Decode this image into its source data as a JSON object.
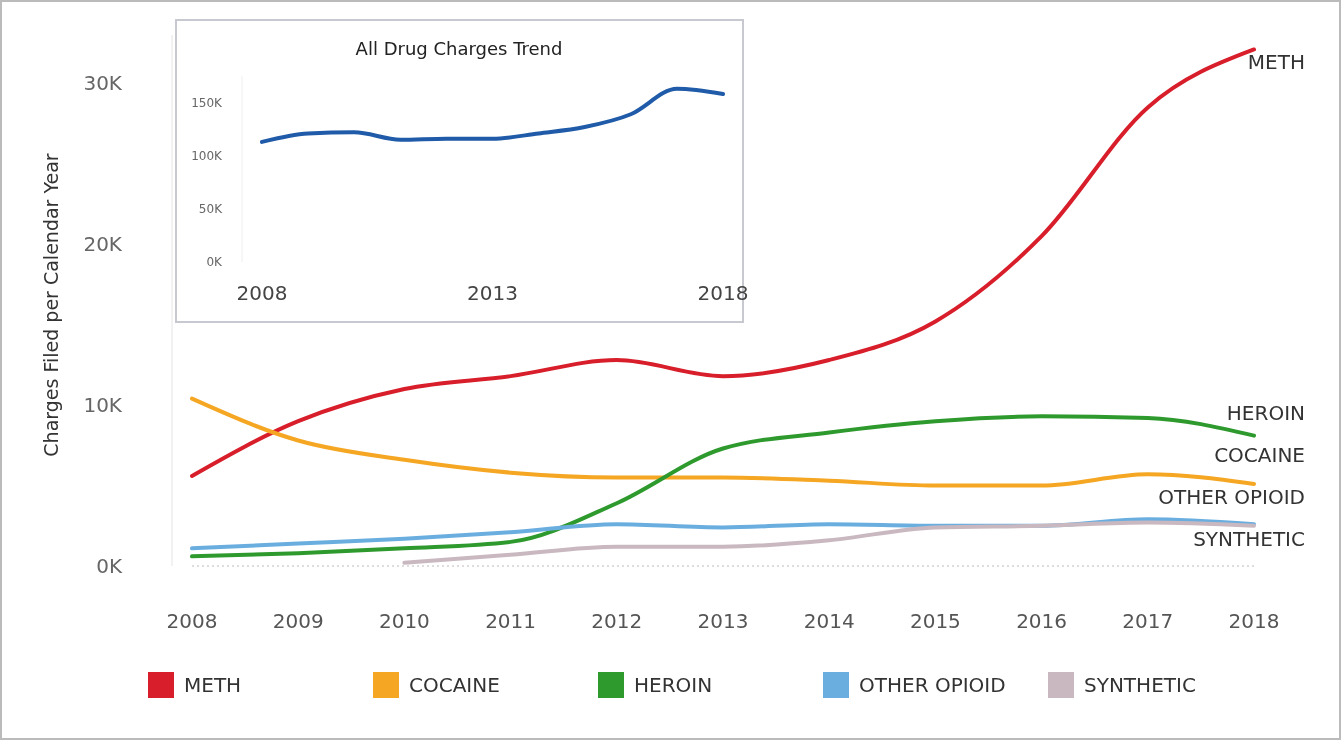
{
  "chart_data": [
    {
      "type": "line",
      "ylabel": "Charges Filed per Calendar Year",
      "x": [
        2008,
        2009,
        2010,
        2011,
        2012,
        2013,
        2014,
        2015,
        2016,
        2017,
        2018
      ],
      "xlim": [
        2008,
        2018
      ],
      "xticks": [
        2008,
        2009,
        2010,
        2011,
        2012,
        2013,
        2014,
        2015,
        2016,
        2017,
        2018
      ],
      "ylim": [
        0,
        33000
      ],
      "yticks": [
        {
          "value": 0,
          "label": "0K"
        },
        {
          "value": 10000,
          "label": "10K"
        },
        {
          "value": 20000,
          "label": "20K"
        },
        {
          "value": 30000,
          "label": "30K"
        }
      ],
      "legend": "bottom",
      "grid": false,
      "marker": "none",
      "series": [
        {
          "name": "METH",
          "color": "#d81e2a",
          "values": [
            5600,
            9000,
            11000,
            11800,
            12800,
            11800,
            12800,
            15200,
            20500,
            28500,
            32100
          ]
        },
        {
          "name": "COCAINE",
          "color": "#f5a623",
          "values": [
            10400,
            7800,
            6600,
            5800,
            5500,
            5500,
            5300,
            5000,
            5000,
            5700,
            5100
          ]
        },
        {
          "name": "HEROIN",
          "color": "#2e9a2e",
          "values": [
            600,
            800,
            1100,
            1500,
            3900,
            7300,
            8300,
            9000,
            9300,
            9200,
            8100
          ]
        },
        {
          "name": "OTHER OPIOID",
          "color": "#6aaee0",
          "values": [
            1100,
            1400,
            1700,
            2100,
            2600,
            2400,
            2600,
            2500,
            2500,
            2900,
            2600
          ]
        },
        {
          "name": "SYNTHETIC",
          "color": "#c9b8c0",
          "values": [
            null,
            null,
            200,
            700,
            1200,
            1200,
            1600,
            2400,
            2500,
            2700,
            2500
          ]
        }
      ]
    },
    {
      "type": "line",
      "title": "All Drug Charges Trend",
      "x": [
        2008,
        2009,
        2010,
        2011,
        2012,
        2013,
        2014,
        2015,
        2016,
        2017,
        2018
      ],
      "xlim": [
        2008,
        2018
      ],
      "xticks": [
        2008,
        2013,
        2018
      ],
      "ylim": [
        0,
        175000
      ],
      "yticks": [
        {
          "value": 0,
          "label": "0K"
        },
        {
          "value": 50000,
          "label": "50K"
        },
        {
          "value": 100000,
          "label": "100K"
        },
        {
          "value": 150000,
          "label": "150K"
        }
      ],
      "grid": false,
      "marker": "none",
      "series": [
        {
          "color": "#1f5ba8",
          "values": [
            113000,
            121000,
            122000,
            115000,
            116000,
            116000,
            121000,
            127000,
            139000,
            163000,
            158000
          ]
        }
      ]
    }
  ]
}
